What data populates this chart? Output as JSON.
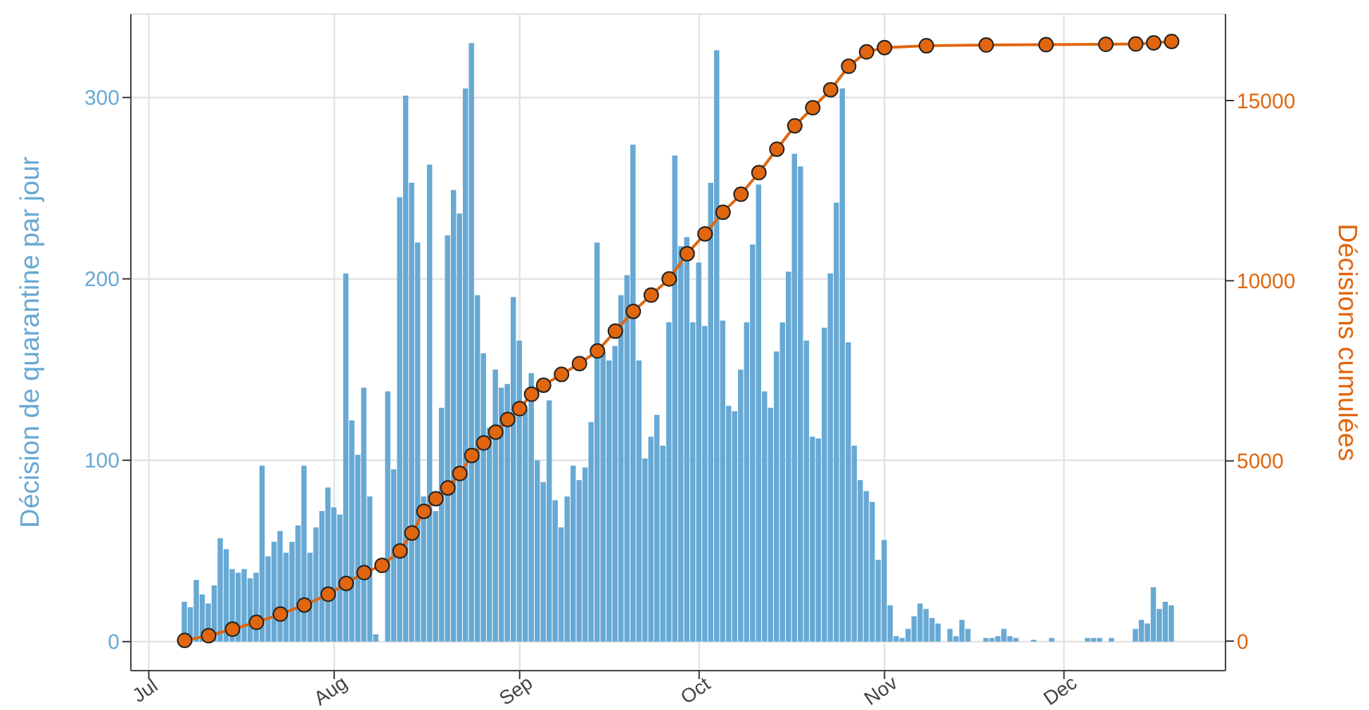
{
  "chart_data": {
    "type": "bar",
    "ylabel": "Décision de quarantine par jour",
    "y2label": "Décisions cumulées",
    "xlim": [
      "--06-28",
      "--12-28"
    ],
    "xticks": [
      {
        "value": "--07-01",
        "label": "Jul"
      },
      {
        "value": "--08-01",
        "label": "Aug"
      },
      {
        "value": "--09-01",
        "label": "Sep"
      },
      {
        "value": "--10-01",
        "label": "Oct"
      },
      {
        "value": "--11-01",
        "label": "Nov"
      },
      {
        "value": "--12-01",
        "label": "Dec"
      }
    ],
    "ylim": [
      -16,
      346
    ],
    "yticks": [
      0,
      100,
      200,
      300
    ],
    "y2lim": [
      -820,
      17400
    ],
    "y2ticks": [
      0,
      5000,
      10000,
      15000
    ],
    "grid": true,
    "marker": "circle",
    "series": [
      {
        "color": "#67a9d4",
        "x": [
          "--07-07",
          "--07-08",
          "--07-09",
          "--07-10",
          "--07-11",
          "--07-12",
          "--07-13",
          "--07-14",
          "--07-15",
          "--07-16",
          "--07-17",
          "--07-18",
          "--07-19",
          "--07-20",
          "--07-21",
          "--07-22",
          "--07-23",
          "--07-24",
          "--07-25",
          "--07-26",
          "--07-27",
          "--07-28",
          "--07-29",
          "--07-30",
          "--07-31",
          "--08-01",
          "--08-02",
          "--08-03",
          "--08-04",
          "--08-05",
          "--08-06",
          "--08-07",
          "--08-08",
          "--08-10",
          "--08-11",
          "--08-12",
          "--08-13",
          "--08-14",
          "--08-15",
          "--08-16",
          "--08-17",
          "--08-18",
          "--08-19",
          "--08-20",
          "--08-21",
          "--08-22",
          "--08-23",
          "--08-24",
          "--08-25",
          "--08-26",
          "--08-27",
          "--08-28",
          "--08-29",
          "--08-30",
          "--08-31",
          "--09-01",
          "--09-02",
          "--09-03",
          "--09-04",
          "--09-05",
          "--09-06",
          "--09-07",
          "--09-08",
          "--09-09",
          "--09-10",
          "--09-11",
          "--09-12",
          "--09-13",
          "--09-14",
          "--09-15",
          "--09-16",
          "--09-17",
          "--09-18",
          "--09-19",
          "--09-20",
          "--09-21",
          "--09-22",
          "--09-23",
          "--09-24",
          "--09-25",
          "--09-26",
          "--09-27",
          "--09-28",
          "--09-29",
          "--09-30",
          "--10-01",
          "--10-02",
          "--10-03",
          "--10-04",
          "--10-05",
          "--10-06",
          "--10-07",
          "--10-08",
          "--10-09",
          "--10-10",
          "--10-11",
          "--10-12",
          "--10-13",
          "--10-14",
          "--10-15",
          "--10-16",
          "--10-17",
          "--10-18",
          "--10-19",
          "--10-20",
          "--10-21",
          "--10-22",
          "--10-23",
          "--10-24",
          "--10-25",
          "--10-26",
          "--10-27",
          "--10-28",
          "--10-29",
          "--10-30",
          "--10-31",
          "--11-01",
          "--11-02",
          "--11-03",
          "--11-04",
          "--11-05",
          "--11-06",
          "--11-07",
          "--11-08",
          "--11-09",
          "--11-10",
          "--11-12",
          "--11-13",
          "--11-14",
          "--11-15",
          "--11-18",
          "--11-19",
          "--11-20",
          "--11-21",
          "--11-22",
          "--11-23",
          "--11-26",
          "--11-29",
          "--12-05",
          "--12-06",
          "--12-07",
          "--12-09",
          "--12-13",
          "--12-14",
          "--12-15",
          "--12-16",
          "--12-17",
          "--12-18",
          "--12-19"
        ],
        "values": [
          22,
          19,
          34,
          26,
          21,
          31,
          57,
          51,
          40,
          38,
          40,
          35,
          38,
          97,
          47,
          55,
          61,
          49,
          55,
          64,
          97,
          49,
          63,
          72,
          85,
          74,
          70,
          203,
          122,
          103,
          140,
          80,
          4,
          138,
          95,
          245,
          301,
          253,
          220,
          80,
          263,
          72,
          129,
          224,
          249,
          236,
          305,
          330,
          191,
          159,
          118,
          150,
          140,
          142,
          190,
          166,
          128,
          148,
          100,
          88,
          133,
          78,
          63,
          80,
          97,
          89,
          96,
          121,
          220,
          160,
          155,
          163,
          191,
          202,
          274,
          155,
          101,
          113,
          125,
          108,
          176,
          268,
          218,
          223,
          176,
          209,
          174,
          253,
          326,
          177,
          130,
          127,
          150,
          176,
          219,
          252,
          138,
          129,
          160,
          176,
          204,
          269,
          262,
          166,
          113,
          112,
          173,
          203,
          242,
          305,
          165,
          108,
          89,
          83,
          77,
          45,
          56,
          20,
          3,
          2,
          7,
          14,
          21,
          18,
          13,
          10,
          7,
          3,
          12,
          7,
          2,
          2,
          3,
          7,
          3,
          2,
          1,
          2,
          2,
          2,
          2,
          2,
          7,
          12,
          10,
          30,
          18,
          22,
          20
        ]
      },
      {
        "type": "line",
        "axis": "y2",
        "color": "#e0660f",
        "x": [
          "--07-07",
          "--07-11",
          "--07-15",
          "--07-19",
          "--07-23",
          "--07-27",
          "--07-31",
          "--08-03",
          "--08-06",
          "--08-09",
          "--08-12",
          "--08-14",
          "--08-16",
          "--08-18",
          "--08-20",
          "--08-22",
          "--08-24",
          "--08-26",
          "--08-28",
          "--08-30",
          "--09-01",
          "--09-03",
          "--09-05",
          "--09-08",
          "--09-11",
          "--09-14",
          "--09-17",
          "--09-20",
          "--09-23",
          "--09-26",
          "--09-29",
          "--10-02",
          "--10-05",
          "--10-08",
          "--10-11",
          "--10-14",
          "--10-17",
          "--10-20",
          "--10-23",
          "--10-26",
          "--10-29",
          "--11-01",
          "--11-08",
          "--11-18",
          "--11-28",
          "--12-08",
          "--12-13",
          "--12-16",
          "--12-19"
        ],
        "values": [
          20,
          150,
          330,
          520,
          750,
          1000,
          1300,
          1600,
          1900,
          2100,
          2500,
          3000,
          3600,
          3950,
          4250,
          4650,
          5150,
          5500,
          5800,
          6150,
          6450,
          6850,
          7100,
          7400,
          7700,
          8050,
          8600,
          9150,
          9600,
          10050,
          10750,
          11300,
          11900,
          12400,
          13000,
          13650,
          14300,
          14800,
          15300,
          15950,
          16350,
          16470,
          16520,
          16540,
          16550,
          16560,
          16570,
          16600,
          16640
        ]
      }
    ]
  }
}
